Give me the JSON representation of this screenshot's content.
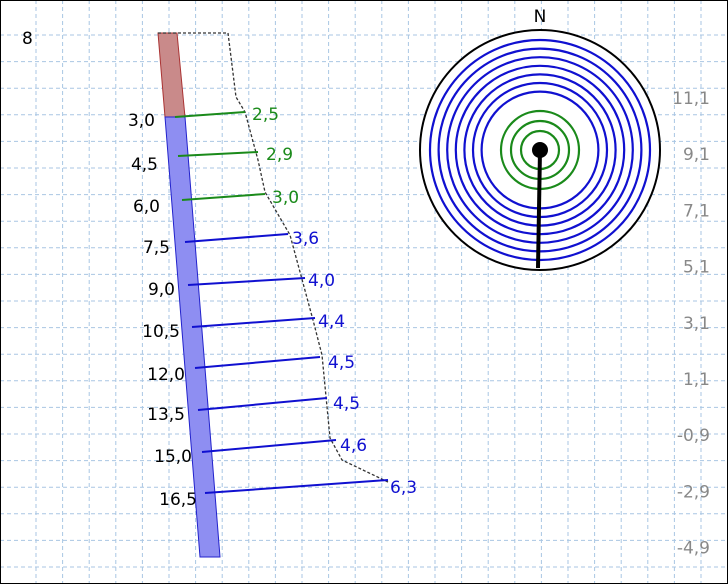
{
  "label": "8",
  "north": "N",
  "profile": [
    {
      "depth": "3,0",
      "value": "2,5",
      "color": "#1a8a1a"
    },
    {
      "depth": "4,5",
      "value": "2,9",
      "color": "#1a8a1a"
    },
    {
      "depth": "6,0",
      "value": "3,0",
      "color": "#1a8a1a"
    },
    {
      "depth": "7,5",
      "value": "3,6",
      "color": "#1010d0"
    },
    {
      "depth": "9,0",
      "value": "4,0",
      "color": "#1010d0"
    },
    {
      "depth": "10,5",
      "value": "4,4",
      "color": "#1010d0"
    },
    {
      "depth": "12,0",
      "value": "4,5",
      "color": "#1010d0"
    },
    {
      "depth": "13,5",
      "value": "4,5",
      "color": "#1010d0"
    },
    {
      "depth": "15,0",
      "value": "4,6",
      "color": "#1010d0"
    },
    {
      "depth": "16,5",
      "value": "6,3",
      "color": "#1010d0"
    }
  ],
  "scale": [
    "11,1",
    "9,1",
    "7,1",
    "5,1",
    "3,1",
    "1,1",
    "-0,9",
    "-2,9",
    "-4,9"
  ]
}
